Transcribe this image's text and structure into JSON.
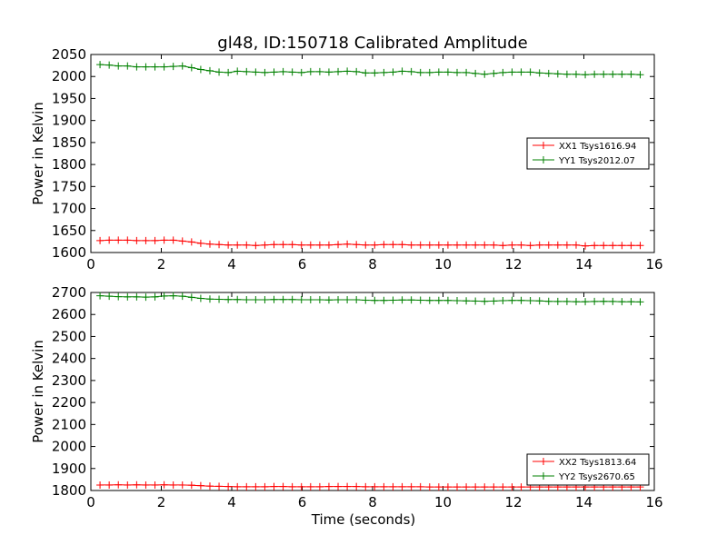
{
  "title": "gl48, ID:150718 Calibrated Amplitude",
  "colors": {
    "red": "#ff0000",
    "green": "#008000"
  },
  "chart_data": [
    {
      "type": "line",
      "xlabel": "",
      "ylabel": "Power in Kelvin",
      "xlim": [
        0,
        16
      ],
      "ylim": [
        1600,
        2050
      ],
      "xticks": [
        0,
        2,
        4,
        6,
        8,
        10,
        12,
        14,
        16
      ],
      "yticks": [
        1600,
        1650,
        1700,
        1750,
        1800,
        1850,
        1900,
        1950,
        2000,
        2050
      ],
      "grid": false,
      "legend_position": "center-right",
      "x": [
        0.26,
        0.52,
        0.78,
        1.04,
        1.3,
        1.56,
        1.82,
        2.08,
        2.34,
        2.6,
        2.86,
        3.12,
        3.38,
        3.64,
        3.9,
        4.16,
        4.42,
        4.68,
        4.94,
        5.2,
        5.46,
        5.72,
        5.98,
        6.24,
        6.5,
        6.76,
        7.02,
        7.28,
        7.54,
        7.8,
        8.06,
        8.32,
        8.58,
        8.84,
        9.1,
        9.36,
        9.62,
        9.88,
        10.14,
        10.4,
        10.66,
        10.92,
        11.18,
        11.44,
        11.7,
        11.96,
        12.22,
        12.48,
        12.74,
        13.0,
        13.26,
        13.52,
        13.78,
        14.04,
        14.3,
        14.56,
        14.82,
        15.08,
        15.34,
        15.6
      ],
      "series": [
        {
          "name": "XX1 Tsys1616.94",
          "color": "red",
          "values": [
            1627,
            1628,
            1628,
            1628,
            1627,
            1627,
            1627,
            1628,
            1628,
            1626,
            1624,
            1621,
            1619,
            1618,
            1617,
            1617,
            1617,
            1616,
            1617,
            1618,
            1618,
            1618,
            1617,
            1617,
            1617,
            1617,
            1618,
            1619,
            1618,
            1617,
            1617,
            1618,
            1618,
            1618,
            1617,
            1617,
            1617,
            1617,
            1617,
            1617,
            1617,
            1617,
            1617,
            1617,
            1616,
            1617,
            1617,
            1616,
            1617,
            1617,
            1617,
            1617,
            1617,
            1615,
            1616,
            1616,
            1616,
            1616,
            1616,
            1616
          ]
        },
        {
          "name": "YY1 Tsys2012.07",
          "color": "green",
          "values": [
            2027,
            2026,
            2024,
            2024,
            2022,
            2022,
            2022,
            2022,
            2023,
            2024,
            2020,
            2016,
            2013,
            2010,
            2009,
            2012,
            2011,
            2010,
            2009,
            2010,
            2011,
            2010,
            2009,
            2011,
            2011,
            2010,
            2011,
            2012,
            2011,
            2008,
            2008,
            2009,
            2010,
            2012,
            2011,
            2009,
            2009,
            2010,
            2010,
            2009,
            2009,
            2007,
            2005,
            2007,
            2009,
            2010,
            2010,
            2010,
            2008,
            2007,
            2006,
            2005,
            2005,
            2004,
            2005,
            2005,
            2005,
            2005,
            2005,
            2004
          ]
        }
      ]
    },
    {
      "type": "line",
      "xlabel": "Time (seconds)",
      "ylabel": "Power in Kelvin",
      "xlim": [
        0,
        16
      ],
      "ylim": [
        1800,
        2700
      ],
      "xticks": [
        0,
        2,
        4,
        6,
        8,
        10,
        12,
        14,
        16
      ],
      "yticks": [
        1800,
        1900,
        2000,
        2100,
        2200,
        2300,
        2400,
        2500,
        2600,
        2700
      ],
      "grid": false,
      "legend_position": "lower-right",
      "x": [
        0.26,
        0.52,
        0.78,
        1.04,
        1.3,
        1.56,
        1.82,
        2.08,
        2.34,
        2.6,
        2.86,
        3.12,
        3.38,
        3.64,
        3.9,
        4.16,
        4.42,
        4.68,
        4.94,
        5.2,
        5.46,
        5.72,
        5.98,
        6.24,
        6.5,
        6.76,
        7.02,
        7.28,
        7.54,
        7.8,
        8.06,
        8.32,
        8.58,
        8.84,
        9.1,
        9.36,
        9.62,
        9.88,
        10.14,
        10.4,
        10.66,
        10.92,
        11.18,
        11.44,
        11.7,
        11.96,
        12.22,
        12.48,
        12.74,
        13.0,
        13.26,
        13.52,
        13.78,
        14.04,
        14.3,
        14.56,
        14.82,
        15.08,
        15.34,
        15.6
      ],
      "series": [
        {
          "name": "XX2 Tsys1813.64",
          "color": "red",
          "values": [
            1825,
            1825,
            1826,
            1825,
            1826,
            1825,
            1825,
            1826,
            1825,
            1825,
            1824,
            1822,
            1820,
            1819,
            1818,
            1817,
            1817,
            1817,
            1817,
            1818,
            1818,
            1817,
            1817,
            1817,
            1817,
            1818,
            1818,
            1818,
            1818,
            1817,
            1817,
            1817,
            1817,
            1817,
            1817,
            1817,
            1816,
            1816,
            1816,
            1816,
            1816,
            1816,
            1816,
            1816,
            1816,
            1816,
            1816,
            1816,
            1816,
            1816,
            1816,
            1816,
            1816,
            1816,
            1816,
            1816,
            1816,
            1816,
            1816,
            1816
          ]
        },
        {
          "name": "YY2 Tsys2670.65",
          "color": "green",
          "values": [
            2685,
            2683,
            2681,
            2680,
            2680,
            2679,
            2680,
            2684,
            2685,
            2683,
            2678,
            2673,
            2670,
            2669,
            2668,
            2668,
            2667,
            2667,
            2667,
            2668,
            2668,
            2668,
            2667,
            2667,
            2667,
            2666,
            2667,
            2667,
            2667,
            2665,
            2664,
            2664,
            2665,
            2666,
            2666,
            2665,
            2664,
            2664,
            2664,
            2663,
            2662,
            2661,
            2660,
            2661,
            2663,
            2664,
            2664,
            2663,
            2662,
            2660,
            2659,
            2659,
            2658,
            2658,
            2659,
            2660,
            2659,
            2658,
            2658,
            2657
          ]
        }
      ]
    }
  ]
}
